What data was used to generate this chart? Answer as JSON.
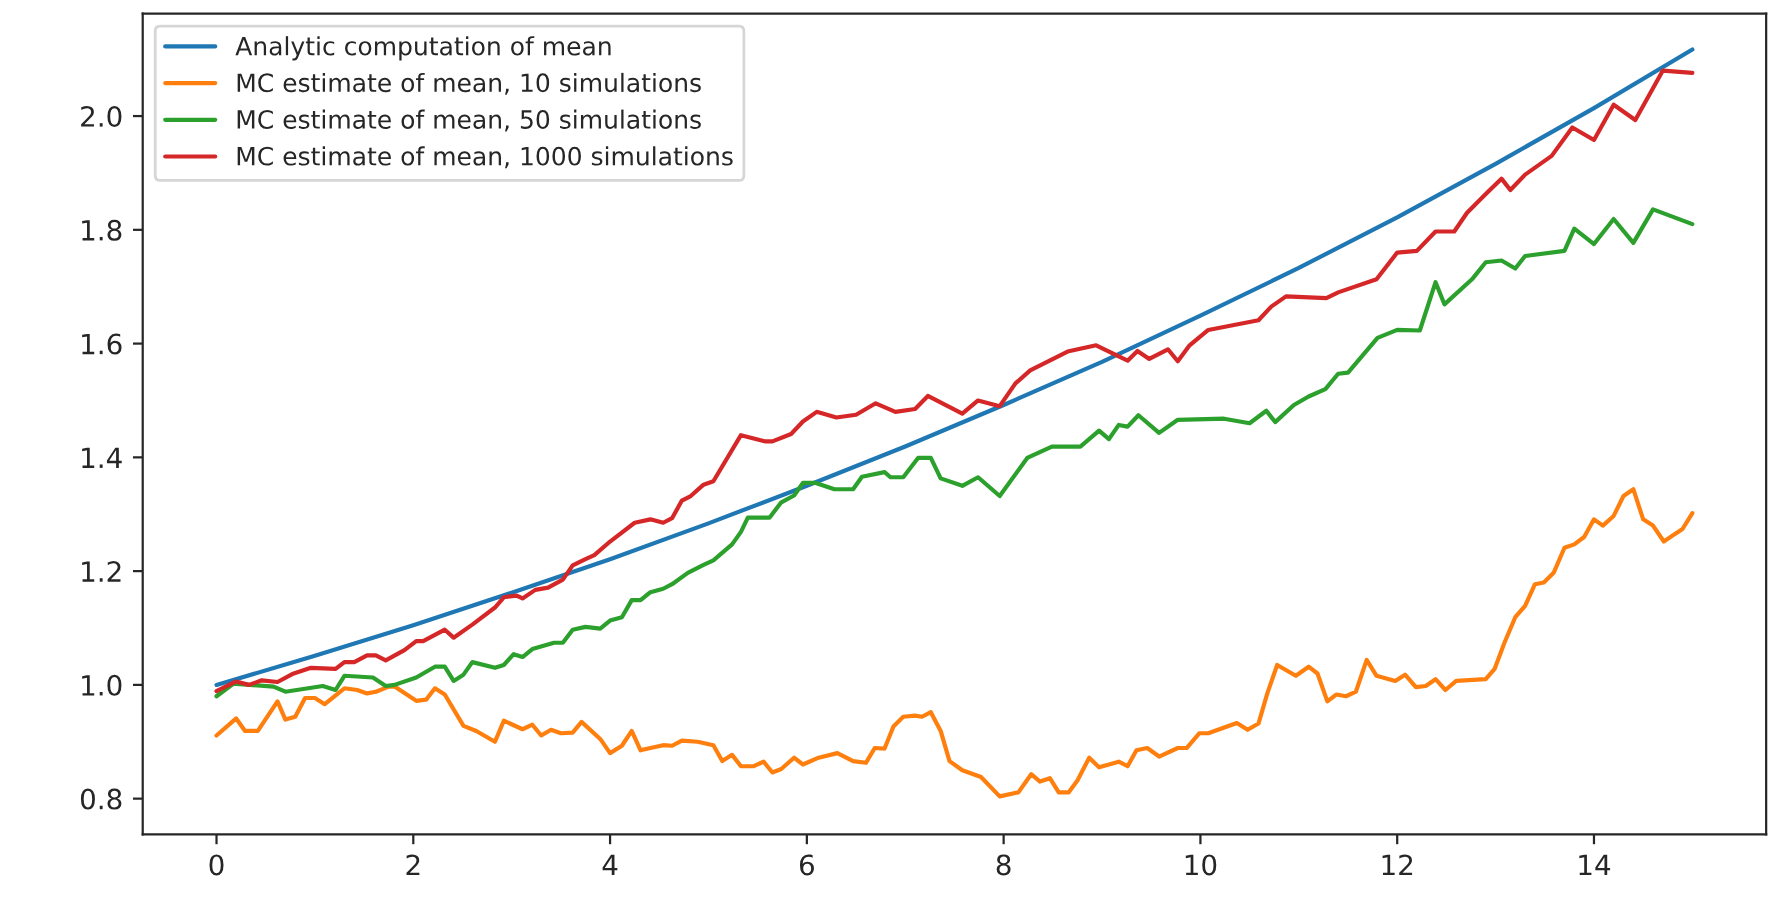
{
  "chart_data": {
    "type": "line",
    "xlim": [
      -0.75,
      15.75
    ],
    "ylim": [
      0.737,
      2.18
    ],
    "xticks": [
      0,
      2,
      4,
      6,
      8,
      10,
      12,
      14
    ],
    "yticks": [
      0.8,
      {
        "value": 1,
        "label": "1.0"
      },
      1.2,
      1.4,
      1.6,
      1.8,
      {
        "value": 2,
        "label": "2.0"
      }
    ],
    "grid": false,
    "legend": "top left",
    "marker": "none",
    "line_style": "solid",
    "series": [
      {
        "name": "Analytic computation of mean",
        "color": "#1f77b4",
        "x": [
          0,
          1,
          2,
          3,
          4,
          5,
          6,
          7,
          8,
          9,
          10,
          11,
          12,
          13,
          14,
          15
        ],
        "values": [
          1.0,
          1.051,
          1.105,
          1.162,
          1.221,
          1.284,
          1.35,
          1.419,
          1.492,
          1.568,
          1.649,
          1.733,
          1.822,
          1.916,
          2.014,
          2.117
        ]
      },
      {
        "name": "MC estimate of mean, 10 simulations",
        "color": "#ff7f0e",
        "x": [
          0,
          0.2,
          0.29,
          0.42,
          0.62,
          0.7,
          0.8,
          0.9,
          1.0,
          1.1,
          1.3,
          1.43,
          1.53,
          1.62,
          1.75,
          1.81,
          2.03,
          2.13,
          2.22,
          2.32,
          2.51,
          2.64,
          2.83,
          2.92,
          3.11,
          3.21,
          3.3,
          3.4,
          3.5,
          3.62,
          3.71,
          3.9,
          4.0,
          4.12,
          4.22,
          4.31,
          4.41,
          4.54,
          4.63,
          4.73,
          4.89,
          5.05,
          5.14,
          5.24,
          5.33,
          5.46,
          5.56,
          5.65,
          5.74,
          5.87,
          5.96,
          6.12,
          6.31,
          6.47,
          6.6,
          6.69,
          6.79,
          6.88,
          6.98,
          7.1,
          7.17,
          7.26,
          7.36,
          7.45,
          7.58,
          7.77,
          7.96,
          8.15,
          8.28,
          8.37,
          8.47,
          8.56,
          8.66,
          8.75,
          8.87,
          8.97,
          9.17,
          9.26,
          9.35,
          9.46,
          9.58,
          9.77,
          9.86,
          9.99,
          10.08,
          10.37,
          10.48,
          10.59,
          10.68,
          10.78,
          10.97,
          11.1,
          11.19,
          11.29,
          11.38,
          11.48,
          11.58,
          11.69,
          11.79,
          11.98,
          12.08,
          12.19,
          12.29,
          12.39,
          12.49,
          12.6,
          12.9,
          12.99,
          13.09,
          13.2,
          13.3,
          13.4,
          13.49,
          13.59,
          13.7,
          13.8,
          13.9,
          14.0,
          14.09,
          14.2,
          14.3,
          14.4,
          14.5,
          14.6,
          14.71,
          14.82,
          14.9,
          15.0
        ],
        "values": [
          0.911,
          0.941,
          0.919,
          0.919,
          0.971,
          0.939,
          0.944,
          0.977,
          0.977,
          0.966,
          0.994,
          0.991,
          0.985,
          0.988,
          0.997,
          0.997,
          0.972,
          0.974,
          0.994,
          0.983,
          0.928,
          0.919,
          0.9,
          0.937,
          0.922,
          0.93,
          0.911,
          0.921,
          0.915,
          0.916,
          0.935,
          0.905,
          0.88,
          0.893,
          0.919,
          0.885,
          0.889,
          0.894,
          0.893,
          0.902,
          0.9,
          0.894,
          0.866,
          0.877,
          0.857,
          0.857,
          0.865,
          0.846,
          0.852,
          0.872,
          0.86,
          0.872,
          0.88,
          0.866,
          0.863,
          0.889,
          0.888,
          0.927,
          0.944,
          0.946,
          0.944,
          0.952,
          0.919,
          0.866,
          0.85,
          0.838,
          0.804,
          0.811,
          0.843,
          0.83,
          0.836,
          0.811,
          0.811,
          0.832,
          0.872,
          0.855,
          0.865,
          0.857,
          0.885,
          0.889,
          0.874,
          0.889,
          0.889,
          0.915,
          0.915,
          0.933,
          0.921,
          0.932,
          0.985,
          1.035,
          1.016,
          1.032,
          1.02,
          0.971,
          0.983,
          0.98,
          0.988,
          1.044,
          1.016,
          1.007,
          1.018,
          0.996,
          0.998,
          1.01,
          0.991,
          1.007,
          1.01,
          1.028,
          1.074,
          1.119,
          1.139,
          1.177,
          1.18,
          1.197,
          1.241,
          1.247,
          1.26,
          1.291,
          1.28,
          1.297,
          1.332,
          1.344,
          1.291,
          1.28,
          1.252,
          1.265,
          1.274,
          1.302
        ]
      },
      {
        "name": "MC estimate of mean, 50 simulations",
        "color": "#2ca02c",
        "x": [
          0,
          0.17,
          0.58,
          0.7,
          1.08,
          1.21,
          1.3,
          1.59,
          1.72,
          1.81,
          2.03,
          2.22,
          2.32,
          2.41,
          2.51,
          2.6,
          2.83,
          2.92,
          3.02,
          3.11,
          3.21,
          3.43,
          3.52,
          3.62,
          3.75,
          3.9,
          4.0,
          4.12,
          4.22,
          4.31,
          4.41,
          4.54,
          4.63,
          4.79,
          4.95,
          5.05,
          5.24,
          5.33,
          5.4,
          5.62,
          5.74,
          5.87,
          5.96,
          6.09,
          6.28,
          6.47,
          6.56,
          6.79,
          6.85,
          6.98,
          7.13,
          7.26,
          7.36,
          7.58,
          7.74,
          7.96,
          8.24,
          8.49,
          8.78,
          8.97,
          9.07,
          9.17,
          9.26,
          9.37,
          9.58,
          9.77,
          10.24,
          10.5,
          10.67,
          10.76,
          10.95,
          11.1,
          11.27,
          11.4,
          11.5,
          11.8,
          12.0,
          12.23,
          12.39,
          12.48,
          12.76,
          12.9,
          13.06,
          13.2,
          13.3,
          13.7,
          13.8,
          14.0,
          14.2,
          14.4,
          14.6,
          15.0
        ],
        "values": [
          0.98,
          1.002,
          0.997,
          0.988,
          0.998,
          0.991,
          1.016,
          1.013,
          0.998,
          1.0,
          1.013,
          1.032,
          1.032,
          1.007,
          1.018,
          1.04,
          1.03,
          1.035,
          1.054,
          1.049,
          1.063,
          1.074,
          1.074,
          1.097,
          1.102,
          1.099,
          1.113,
          1.119,
          1.149,
          1.149,
          1.163,
          1.169,
          1.177,
          1.197,
          1.211,
          1.219,
          1.247,
          1.269,
          1.294,
          1.294,
          1.321,
          1.333,
          1.355,
          1.355,
          1.344,
          1.344,
          1.366,
          1.374,
          1.365,
          1.365,
          1.399,
          1.399,
          1.363,
          1.35,
          1.365,
          1.332,
          1.399,
          1.419,
          1.419,
          1.447,
          1.432,
          1.457,
          1.454,
          1.474,
          1.443,
          1.466,
          1.468,
          1.46,
          1.482,
          1.462,
          1.492,
          1.507,
          1.52,
          1.547,
          1.549,
          1.61,
          1.624,
          1.623,
          1.708,
          1.669,
          1.713,
          1.743,
          1.746,
          1.732,
          1.754,
          1.763,
          1.802,
          1.775,
          1.819,
          1.777,
          1.836,
          1.81
        ]
      },
      {
        "name": "MC estimate of mean, 1000 simulations",
        "color": "#d62728",
        "x": [
          0,
          0.2,
          0.33,
          0.46,
          0.62,
          0.77,
          0.96,
          1.21,
          1.3,
          1.4,
          1.53,
          1.62,
          1.72,
          1.91,
          2.03,
          2.1,
          2.32,
          2.41,
          2.6,
          2.83,
          2.92,
          3.05,
          3.11,
          3.24,
          3.37,
          3.52,
          3.62,
          3.75,
          3.84,
          4.0,
          4.25,
          4.41,
          4.54,
          4.63,
          4.73,
          4.82,
          4.95,
          5.05,
          5.33,
          5.58,
          5.65,
          5.84,
          5.96,
          6.1,
          6.3,
          6.5,
          6.7,
          6.9,
          7.1,
          7.23,
          7.58,
          7.74,
          7.96,
          8.12,
          8.27,
          8.65,
          8.94,
          9.26,
          9.36,
          9.48,
          9.67,
          9.77,
          9.89,
          10.08,
          10.59,
          10.72,
          10.87,
          11.28,
          11.4,
          11.79,
          12.0,
          12.2,
          12.39,
          12.58,
          12.71,
          12.9,
          13.06,
          13.15,
          13.3,
          13.57,
          13.78,
          14.0,
          14.2,
          14.42,
          14.7,
          15.0
        ],
        "values": [
          0.989,
          1.006,
          1.0,
          1.008,
          1.005,
          1.019,
          1.03,
          1.028,
          1.04,
          1.04,
          1.052,
          1.052,
          1.043,
          1.061,
          1.077,
          1.077,
          1.097,
          1.083,
          1.106,
          1.136,
          1.154,
          1.157,
          1.152,
          1.167,
          1.171,
          1.185,
          1.21,
          1.221,
          1.228,
          1.252,
          1.285,
          1.291,
          1.285,
          1.293,
          1.324,
          1.332,
          1.352,
          1.358,
          1.439,
          1.428,
          1.428,
          1.441,
          1.463,
          1.48,
          1.47,
          1.475,
          1.495,
          1.48,
          1.485,
          1.508,
          1.477,
          1.5,
          1.49,
          1.53,
          1.553,
          1.586,
          1.597,
          1.57,
          1.587,
          1.573,
          1.59,
          1.569,
          1.597,
          1.624,
          1.641,
          1.665,
          1.683,
          1.68,
          1.69,
          1.713,
          1.76,
          1.763,
          1.797,
          1.797,
          1.83,
          1.863,
          1.89,
          1.87,
          1.897,
          1.93,
          1.98,
          1.958,
          2.02,
          1.993,
          2.08,
          2.076
        ]
      }
    ]
  }
}
